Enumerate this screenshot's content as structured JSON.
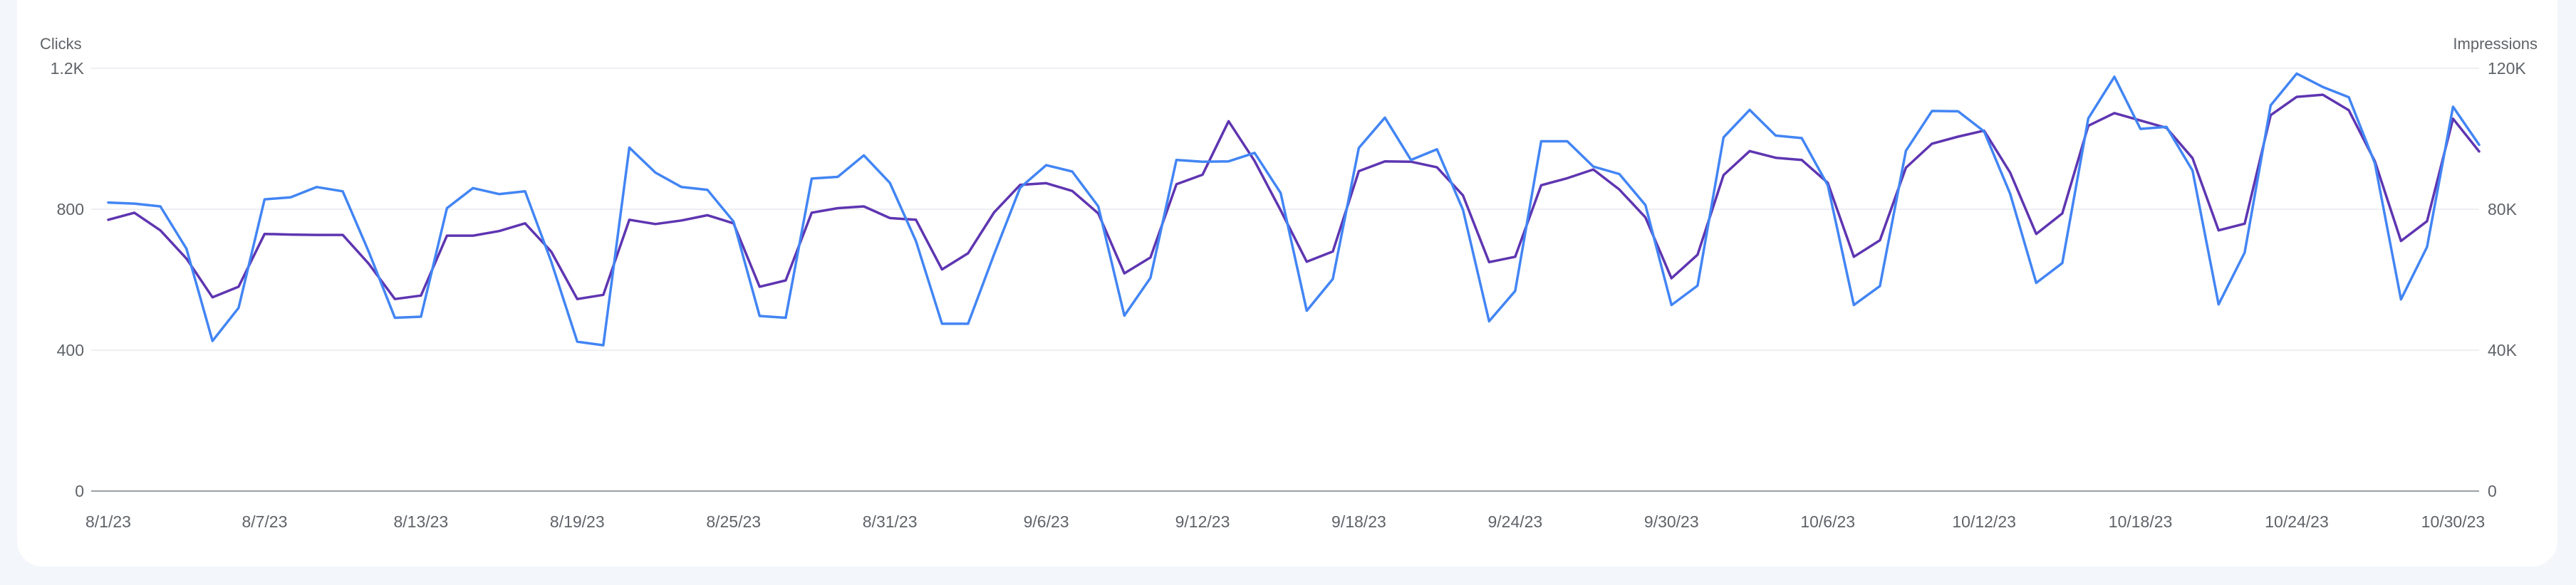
{
  "colors": {
    "clicks": "#4285f4",
    "impressions": "#5e35b1",
    "grid": "#e8eaed",
    "baseline": "#9aa0a6"
  },
  "chart_data": {
    "type": "line",
    "left_axis_title": "Clicks",
    "right_axis_title": "Impressions",
    "left_ticks": [
      "0",
      "400",
      "800",
      "1.2K"
    ],
    "right_ticks": [
      "0",
      "40K",
      "80K",
      "120K"
    ],
    "ylim_left": [
      0,
      1200
    ],
    "ylim_right": [
      0,
      120000
    ],
    "x_tick_labels": [
      "8/1/23",
      "8/7/23",
      "8/13/23",
      "8/19/23",
      "8/25/23",
      "8/31/23",
      "9/6/23",
      "9/12/23",
      "9/18/23",
      "9/24/23",
      "9/30/23",
      "10/6/23",
      "10/12/23",
      "10/18/23",
      "10/24/23",
      "10/30/23"
    ],
    "x_tick_day_index": [
      0,
      6,
      12,
      18,
      24,
      30,
      36,
      42,
      48,
      54,
      60,
      66,
      72,
      78,
      84,
      90
    ],
    "grid": true,
    "series": [
      {
        "name": "Clicks",
        "axis": "left",
        "values": [
          819,
          816,
          808,
          688,
          426,
          520,
          828,
          834,
          863,
          851,
          679,
          492,
          495,
          803,
          860,
          843,
          851,
          652,
          424,
          414,
          975,
          904,
          863,
          855,
          765,
          497,
          492,
          887,
          892,
          953,
          875,
          710,
          475,
          475,
          672,
          861,
          925,
          907,
          808,
          498,
          605,
          940,
          935,
          936,
          960,
          846,
          512,
          602,
          974,
          1060,
          940,
          970,
          798,
          482,
          568,
          993,
          993,
          921,
          900,
          812,
          528,
          583,
          1004,
          1082,
          1009,
          1002,
          868,
          528,
          582,
          966,
          1079,
          1078,
          1021,
          844,
          591,
          647,
          1058,
          1176,
          1028,
          1034,
          910,
          530,
          677,
          1095,
          1185,
          1147,
          1118,
          930,
          544,
          693,
          1091,
          983
        ]
      },
      {
        "name": "Impressions",
        "axis": "right",
        "values": [
          77000,
          79000,
          74000,
          66000,
          55000,
          58000,
          73000,
          72800,
          72700,
          72700,
          64500,
          54500,
          55500,
          72500,
          72500,
          73800,
          76000,
          68000,
          54500,
          55700,
          77000,
          75800,
          76800,
          78300,
          76000,
          58000,
          59800,
          79000,
          80300,
          80800,
          77500,
          77000,
          62900,
          67500,
          79100,
          86900,
          87400,
          85200,
          78800,
          61800,
          66300,
          87100,
          89800,
          105000,
          93700,
          79700,
          65100,
          68000,
          90800,
          93600,
          93500,
          91900,
          83900,
          65000,
          66500,
          86800,
          88800,
          91300,
          85600,
          77700,
          60400,
          67100,
          89700,
          96500,
          94600,
          94000,
          87500,
          66500,
          71200,
          91800,
          98600,
          100600,
          102300,
          90400,
          73000,
          78800,
          103700,
          107300,
          105200,
          103100,
          94500,
          74000,
          75900,
          106700,
          111900,
          112500,
          108100,
          93600,
          71000,
          76600,
          105700,
          96400
        ]
      }
    ]
  }
}
